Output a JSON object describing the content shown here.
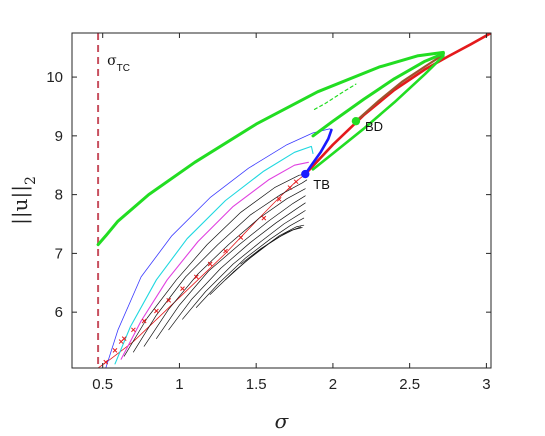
{
  "chart_data": {
    "type": "line",
    "xlabel": "σ",
    "ylabel": "||u||",
    "ylabel_sub": "2",
    "xlim": [
      0.3,
      3.03
    ],
    "ylim": [
      5.05,
      10.75
    ],
    "xticks": [
      0.5,
      1,
      1.5,
      2,
      2.5,
      3
    ],
    "yticks": [
      6,
      7,
      8,
      9,
      10
    ],
    "xtick_labels": [
      "0.5",
      "1",
      "1.5",
      "2",
      "2.5",
      "3"
    ],
    "ytick_labels": [
      "6",
      "7",
      "8",
      "9",
      "10"
    ],
    "grid": false,
    "vline": {
      "x": 0.47,
      "label_main": "σ",
      "label_sub": "TC",
      "color": "#c8505f"
    },
    "annotations": [
      {
        "label": "TB",
        "x": 1.82,
        "y": 8.35,
        "marker_color": "#1a1aff"
      },
      {
        "label": "BD",
        "x": 2.15,
        "y": 9.25,
        "marker_color": "#22dd22"
      }
    ],
    "series": [
      {
        "role": "main-branch-red",
        "color": "#e41a1c",
        "width": 2.6,
        "x": [
          1.82,
          2.0,
          2.2,
          2.4,
          2.6,
          2.75,
          2.9,
          3.03
        ],
        "y": [
          8.35,
          8.85,
          9.35,
          9.78,
          10.13,
          10.35,
          10.56,
          10.75
        ]
      },
      {
        "role": "upper-branch-brown",
        "color": "#a0522d",
        "width": 2.2,
        "x": [
          2.15,
          2.3,
          2.45,
          2.6,
          2.72
        ],
        "y": [
          9.25,
          9.6,
          9.92,
          10.18,
          10.38
        ]
      },
      {
        "role": "lower-branch-thin-red",
        "color": "#e41a1c",
        "width": 0.8,
        "x": [
          0.47,
          0.55,
          0.7,
          0.9,
          1.1,
          1.3,
          1.5,
          1.65,
          1.75,
          1.82
        ],
        "y": [
          5.05,
          5.2,
          5.5,
          6.0,
          6.5,
          7.0,
          7.55,
          7.95,
          8.2,
          8.35
        ]
      },
      {
        "role": "green-outer",
        "color": "#22dd22",
        "width": 3,
        "x": [
          0.47,
          0.52,
          0.6,
          0.8,
          1.1,
          1.5,
          1.9,
          2.3,
          2.55,
          2.72
        ],
        "y": [
          7.15,
          7.3,
          7.55,
          8.0,
          8.55,
          9.2,
          9.75,
          10.17,
          10.36,
          10.42
        ]
      },
      {
        "role": "green-middle",
        "color": "#22dd22",
        "width": 3,
        "x": [
          1.87,
          2.0,
          2.2,
          2.4,
          2.6,
          2.72
        ],
        "y": [
          9.0,
          9.25,
          9.62,
          9.97,
          10.27,
          10.4
        ]
      },
      {
        "role": "green-short",
        "color": "#22dd22",
        "width": 2.6,
        "x": [
          1.87,
          2.0,
          2.2,
          2.4,
          2.6,
          2.72
        ],
        "y": [
          8.43,
          8.7,
          9.12,
          9.57,
          10.05,
          10.36
        ]
      },
      {
        "role": "green-dashed",
        "color": "#22dd22",
        "width": 1.2,
        "dash": "3,3",
        "x": [
          1.88,
          1.95,
          2.05,
          2.15
        ],
        "y": [
          9.45,
          9.55,
          9.72,
          9.88
        ]
      },
      {
        "role": "blue-thick",
        "color": "#1a1aff",
        "width": 2.6,
        "x": [
          1.82,
          1.86,
          1.92,
          1.97,
          1.99
        ],
        "y": [
          8.35,
          8.5,
          8.72,
          8.95,
          9.1
        ]
      },
      {
        "role": "loop-blue",
        "color": "#3b3bff",
        "width": 0.8,
        "x": [
          0.52,
          0.6,
          0.75,
          0.95,
          1.2,
          1.45,
          1.7,
          1.87,
          1.98,
          1.99
        ],
        "y": [
          5.05,
          5.7,
          6.6,
          7.3,
          7.95,
          8.45,
          8.85,
          9.05,
          9.12,
          9.1
        ]
      },
      {
        "role": "loop-cyan",
        "color": "#20d8e0",
        "width": 1.1,
        "x": [
          0.58,
          0.68,
          0.85,
          1.05,
          1.3,
          1.55,
          1.75,
          1.86,
          1.87
        ],
        "y": [
          5.12,
          5.75,
          6.55,
          7.25,
          7.9,
          8.4,
          8.72,
          8.82,
          8.7
        ]
      },
      {
        "role": "loop-magenta",
        "color": "#e040e0",
        "width": 1.1,
        "x": [
          0.62,
          0.75,
          0.92,
          1.12,
          1.35,
          1.58,
          1.75,
          1.84
        ],
        "y": [
          5.2,
          5.85,
          6.55,
          7.2,
          7.8,
          8.25,
          8.5,
          8.55
        ]
      },
      {
        "role": "loop-black-1",
        "color": "#111111",
        "width": 0.7,
        "x": [
          0.64,
          0.79,
          0.98,
          1.18,
          1.4,
          1.62,
          1.78,
          1.83
        ],
        "y": [
          5.25,
          5.9,
          6.55,
          7.15,
          7.7,
          8.12,
          8.33,
          8.35
        ]
      },
      {
        "role": "loop-black-2",
        "color": "#111111",
        "width": 0.7,
        "x": [
          0.7,
          0.85,
          1.04,
          1.25,
          1.46,
          1.66,
          1.8,
          1.83
        ],
        "y": [
          5.32,
          5.95,
          6.6,
          7.15,
          7.65,
          8.0,
          8.2,
          8.25
        ]
      },
      {
        "role": "loop-black-3",
        "color": "#111111",
        "width": 0.7,
        "x": [
          0.77,
          0.93,
          1.12,
          1.32,
          1.52,
          1.7,
          1.82
        ],
        "y": [
          5.42,
          6.05,
          6.65,
          7.15,
          7.6,
          7.93,
          8.1
        ]
      },
      {
        "role": "loop-black-4",
        "color": "#111111",
        "width": 0.7,
        "x": [
          0.85,
          1.0,
          1.19,
          1.39,
          1.58,
          1.74,
          1.82
        ],
        "y": [
          5.55,
          6.12,
          6.7,
          7.15,
          7.55,
          7.85,
          7.98
        ]
      },
      {
        "role": "loop-black-5",
        "color": "#111111",
        "width": 0.7,
        "x": [
          0.93,
          1.08,
          1.27,
          1.46,
          1.63,
          1.77,
          1.82
        ],
        "y": [
          5.7,
          6.22,
          6.75,
          7.18,
          7.52,
          7.77,
          7.86
        ]
      },
      {
        "role": "loop-black-6",
        "color": "#111111",
        "width": 0.7,
        "x": [
          1.02,
          1.17,
          1.35,
          1.53,
          1.68,
          1.79,
          1.82
        ],
        "y": [
          5.88,
          6.35,
          6.82,
          7.2,
          7.5,
          7.68,
          7.73
        ]
      },
      {
        "role": "loop-black-7",
        "color": "#111111",
        "width": 0.7,
        "x": [
          1.11,
          1.26,
          1.43,
          1.59,
          1.72,
          1.81
        ],
        "y": [
          6.08,
          6.5,
          6.92,
          7.24,
          7.47,
          7.6
        ]
      },
      {
        "role": "loop-black-8",
        "color": "#111111",
        "width": 0.7,
        "x": [
          1.2,
          1.35,
          1.51,
          1.65,
          1.76,
          1.81
        ],
        "y": [
          6.3,
          6.68,
          7.03,
          7.3,
          7.45,
          7.48
        ]
      },
      {
        "role": "loop-black-9",
        "color": "#111111",
        "width": 0.7,
        "x": [
          1.3,
          1.44,
          1.58,
          1.7,
          1.79
        ],
        "y": [
          6.55,
          6.88,
          7.16,
          7.36,
          7.45
        ]
      },
      {
        "role": "loop-black-10",
        "color": "#111111",
        "width": 0.7,
        "x": [
          1.4,
          1.53,
          1.65,
          1.74,
          1.8
        ],
        "y": [
          6.82,
          7.08,
          7.28,
          7.4,
          7.44
        ]
      }
    ],
    "bifurcation_markers": {
      "color": "#e41a1c",
      "x": [
        0.52,
        0.58,
        0.62,
        0.64,
        0.7,
        0.77,
        0.85,
        0.93,
        1.02,
        1.11,
        1.2,
        1.3,
        1.4,
        1.55,
        1.65,
        1.72,
        1.76
      ],
      "y": [
        5.15,
        5.35,
        5.5,
        5.55,
        5.7,
        5.85,
        6.02,
        6.2,
        6.4,
        6.6,
        6.82,
        7.04,
        7.27,
        7.6,
        7.92,
        8.12,
        8.22
      ]
    }
  }
}
